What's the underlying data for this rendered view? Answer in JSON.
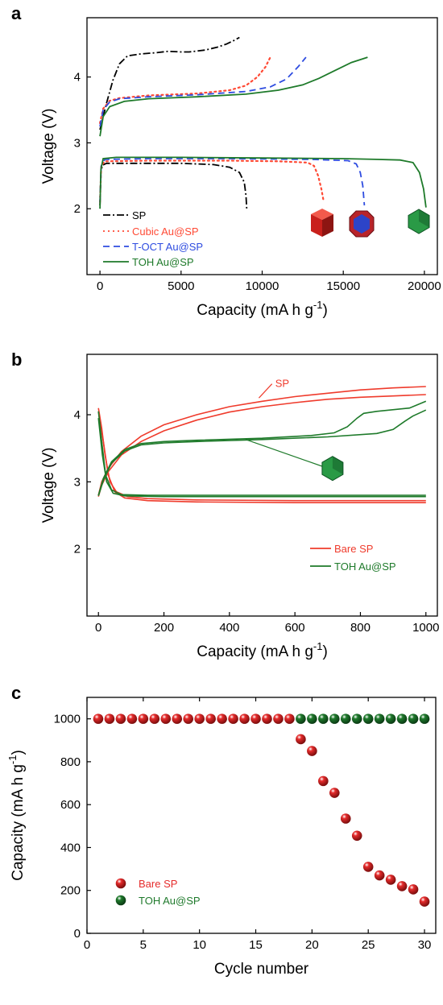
{
  "chart_data": [
    {
      "id": "a",
      "type": "line",
      "panel_label": "a",
      "xlabel": "Capacity (mA h g",
      "xlabel_sup": "-1",
      "xlabel_end": ")",
      "ylabel": "Voltage (V)",
      "xlim": [
        -800,
        20800
      ],
      "ylim": [
        1.0,
        4.9
      ],
      "xticks": [
        0,
        5000,
        10000,
        15000,
        20000
      ],
      "xtick_labels": [
        "0",
        "5000",
        "10000",
        "15000",
        "20000"
      ],
      "yticks": [
        2,
        3,
        4
      ],
      "ytick_labels": [
        "2",
        "3",
        "4"
      ],
      "legend_position": "bottom-left",
      "series": [
        {
          "name": "SP",
          "color": "#000000",
          "style": "dashdot",
          "discharge": [
            [
              0,
              2.05
            ],
            [
              60,
              2.55
            ],
            [
              150,
              2.66
            ],
            [
              400,
              2.69
            ],
            [
              2000,
              2.69
            ],
            [
              5000,
              2.69
            ],
            [
              7000,
              2.67
            ],
            [
              8000,
              2.63
            ],
            [
              8600,
              2.55
            ],
            [
              8900,
              2.4
            ],
            [
              9000,
              2.2
            ],
            [
              9050,
              1.98
            ]
          ],
          "charge": [
            [
              0,
              3.2
            ],
            [
              150,
              3.35
            ],
            [
              400,
              3.6
            ],
            [
              800,
              3.95
            ],
            [
              1200,
              4.2
            ],
            [
              1700,
              4.32
            ],
            [
              2500,
              4.35
            ],
            [
              3500,
              4.37
            ],
            [
              4200,
              4.39
            ],
            [
              5000,
              4.38
            ],
            [
              5500,
              4.38
            ],
            [
              6500,
              4.41
            ],
            [
              7200,
              4.45
            ],
            [
              7800,
              4.5
            ],
            [
              8300,
              4.56
            ],
            [
              8600,
              4.6
            ]
          ]
        },
        {
          "name": "Cubic Au@SP",
          "color": "#ff4a35",
          "style": "dotted",
          "discharge": [
            [
              0,
              2.1
            ],
            [
              80,
              2.65
            ],
            [
              300,
              2.72
            ],
            [
              3000,
              2.73
            ],
            [
              8000,
              2.73
            ],
            [
              11000,
              2.72
            ],
            [
              12800,
              2.7
            ],
            [
              13200,
              2.65
            ],
            [
              13450,
              2.5
            ],
            [
              13650,
              2.3
            ],
            [
              13800,
              2.1
            ]
          ],
          "charge": [
            [
              0,
              3.3
            ],
            [
              200,
              3.52
            ],
            [
              600,
              3.64
            ],
            [
              1200,
              3.68
            ],
            [
              3000,
              3.72
            ],
            [
              6000,
              3.75
            ],
            [
              8000,
              3.8
            ],
            [
              9000,
              3.87
            ],
            [
              9700,
              4.0
            ],
            [
              10200,
              4.15
            ],
            [
              10500,
              4.3
            ]
          ]
        },
        {
          "name": "T-OCT Au@SP",
          "color": "#2e4ce0",
          "style": "dashed",
          "discharge": [
            [
              0,
              2.1
            ],
            [
              80,
              2.65
            ],
            [
              300,
              2.75
            ],
            [
              3000,
              2.76
            ],
            [
              8000,
              2.76
            ],
            [
              13000,
              2.75
            ],
            [
              15300,
              2.73
            ],
            [
              15800,
              2.68
            ],
            [
              16050,
              2.55
            ],
            [
              16200,
              2.35
            ],
            [
              16300,
              2.05
            ]
          ],
          "charge": [
            [
              0,
              3.25
            ],
            [
              200,
              3.5
            ],
            [
              600,
              3.62
            ],
            [
              1200,
              3.67
            ],
            [
              3000,
              3.7
            ],
            [
              6000,
              3.73
            ],
            [
              9000,
              3.78
            ],
            [
              10500,
              3.85
            ],
            [
              11500,
              3.97
            ],
            [
              12200,
              4.15
            ],
            [
              12700,
              4.3
            ]
          ]
        },
        {
          "name": "TOH Au@SP",
          "color": "#1e7a2a",
          "style": "solid",
          "discharge": [
            [
              0,
              2.0
            ],
            [
              60,
              2.6
            ],
            [
              200,
              2.76
            ],
            [
              1000,
              2.78
            ],
            [
              5000,
              2.78
            ],
            [
              10000,
              2.77
            ],
            [
              15000,
              2.76
            ],
            [
              17000,
              2.75
            ],
            [
              18500,
              2.74
            ],
            [
              19300,
              2.7
            ],
            [
              19700,
              2.55
            ],
            [
              19950,
              2.3
            ],
            [
              20100,
              2.02
            ]
          ],
          "charge": [
            [
              0,
              3.1
            ],
            [
              200,
              3.4
            ],
            [
              600,
              3.55
            ],
            [
              1500,
              3.63
            ],
            [
              3000,
              3.67
            ],
            [
              6000,
              3.7
            ],
            [
              9000,
              3.74
            ],
            [
              11000,
              3.8
            ],
            [
              12500,
              3.88
            ],
            [
              13500,
              3.98
            ],
            [
              14500,
              4.1
            ],
            [
              15500,
              4.22
            ],
            [
              16500,
              4.3
            ]
          ]
        }
      ]
    },
    {
      "id": "b",
      "type": "line",
      "panel_label": "b",
      "xlabel": "Capacity (mA h g",
      "xlabel_sup": "-1",
      "xlabel_end": ")",
      "ylabel": "Voltage (V)",
      "xlim": [
        -35,
        1035
      ],
      "ylim": [
        1.0,
        4.9
      ],
      "xticks": [
        0,
        200,
        400,
        600,
        800,
        1000
      ],
      "xtick_labels": [
        "0",
        "200",
        "400",
        "600",
        "800",
        "1000"
      ],
      "yticks": [
        2,
        3,
        4
      ],
      "ytick_labels": [
        "2",
        "3",
        "4"
      ],
      "legend_position": "bottom-right",
      "annotation": "SP",
      "series": [
        {
          "name": "Bare SP",
          "color": "#ef3b2c",
          "curves": [
            [
              [
                0,
                4.1
              ],
              [
                10,
                3.8
              ],
              [
                20,
                3.4
              ],
              [
                35,
                3.0
              ],
              [
                55,
                2.85
              ],
              [
                90,
                2.78
              ],
              [
                150,
                2.75
              ],
              [
                300,
                2.73
              ],
              [
                600,
                2.72
              ],
              [
                1000,
                2.72
              ]
            ],
            [
              [
                0,
                4.05
              ],
              [
                15,
                3.6
              ],
              [
                30,
                3.1
              ],
              [
                50,
                2.85
              ],
              [
                80,
                2.76
              ],
              [
                150,
                2.72
              ],
              [
                300,
                2.7
              ],
              [
                600,
                2.69
              ],
              [
                1000,
                2.69
              ]
            ],
            [
              [
                0,
                2.8
              ],
              [
                10,
                3.0
              ],
              [
                30,
                3.2
              ],
              [
                70,
                3.45
              ],
              [
                130,
                3.68
              ],
              [
                200,
                3.85
              ],
              [
                300,
                4.0
              ],
              [
                400,
                4.12
              ],
              [
                500,
                4.2
              ],
              [
                600,
                4.27
              ],
              [
                700,
                4.32
              ],
              [
                800,
                4.37
              ],
              [
                900,
                4.4
              ],
              [
                1000,
                4.42
              ]
            ],
            [
              [
                0,
                2.78
              ],
              [
                10,
                2.95
              ],
              [
                30,
                3.15
              ],
              [
                70,
                3.4
              ],
              [
                130,
                3.6
              ],
              [
                200,
                3.76
              ],
              [
                300,
                3.92
              ],
              [
                400,
                4.04
              ],
              [
                500,
                4.12
              ],
              [
                600,
                4.18
              ],
              [
                700,
                4.23
              ],
              [
                800,
                4.26
              ],
              [
                900,
                4.28
              ],
              [
                1000,
                4.3
              ]
            ]
          ]
        },
        {
          "name": "TOH Au@SP",
          "color": "#1e7a2a",
          "curves": [
            [
              [
                0,
                4.05
              ],
              [
                10,
                3.6
              ],
              [
                22,
                3.1
              ],
              [
                40,
                2.88
              ],
              [
                70,
                2.81
              ],
              [
                150,
                2.8
              ],
              [
                400,
                2.8
              ],
              [
                700,
                2.8
              ],
              [
                1000,
                2.8
              ]
            ],
            [
              [
                0,
                3.95
              ],
              [
                12,
                3.4
              ],
              [
                25,
                3.0
              ],
              [
                45,
                2.83
              ],
              [
                80,
                2.79
              ],
              [
                200,
                2.78
              ],
              [
                500,
                2.78
              ],
              [
                1000,
                2.78
              ]
            ],
            [
              [
                0,
                2.8
              ],
              [
                15,
                3.05
              ],
              [
                40,
                3.3
              ],
              [
                80,
                3.48
              ],
              [
                130,
                3.57
              ],
              [
                200,
                3.6
              ],
              [
                300,
                3.62
              ],
              [
                500,
                3.65
              ],
              [
                650,
                3.69
              ],
              [
                720,
                3.73
              ],
              [
                760,
                3.82
              ],
              [
                790,
                3.95
              ],
              [
                810,
                4.02
              ],
              [
                850,
                4.05
              ],
              [
                950,
                4.1
              ],
              [
                1000,
                4.2
              ]
            ],
            [
              [
                0,
                2.79
              ],
              [
                15,
                3.02
              ],
              [
                40,
                3.28
              ],
              [
                80,
                3.46
              ],
              [
                130,
                3.55
              ],
              [
                200,
                3.58
              ],
              [
                300,
                3.6
              ],
              [
                500,
                3.63
              ],
              [
                700,
                3.67
              ],
              [
                850,
                3.72
              ],
              [
                900,
                3.78
              ],
              [
                935,
                3.9
              ],
              [
                960,
                3.98
              ],
              [
                1000,
                4.07
              ]
            ]
          ]
        }
      ]
    },
    {
      "id": "c",
      "type": "scatter",
      "panel_label": "c",
      "xlabel": "Cycle number",
      "ylabel": "Capacity (mA h g",
      "ylabel_sup": "-1",
      "ylabel_end": ")",
      "xlim": [
        0,
        31
      ],
      "ylim": [
        0,
        1100
      ],
      "xticks": [
        0,
        5,
        10,
        15,
        20,
        25,
        30
      ],
      "xtick_labels": [
        "0",
        "5",
        "10",
        "15",
        "20",
        "25",
        "30"
      ],
      "yticks": [
        0,
        200,
        400,
        600,
        800,
        1000
      ],
      "ytick_labels": [
        "0",
        "200",
        "400",
        "600",
        "800",
        "1000"
      ],
      "legend_position": "bottom-left",
      "series": [
        {
          "name": "Bare SP",
          "color": "#e52b2b",
          "x": [
            1,
            2,
            3,
            4,
            5,
            6,
            7,
            8,
            9,
            10,
            11,
            12,
            13,
            14,
            15,
            16,
            17,
            18,
            19,
            20,
            21,
            22,
            23,
            24,
            25,
            26,
            27,
            28,
            29,
            30
          ],
          "values": [
            1000,
            1000,
            1000,
            1000,
            1000,
            1000,
            1000,
            1000,
            1000,
            1000,
            1000,
            1000,
            1000,
            1000,
            1000,
            1000,
            1000,
            1000,
            905,
            850,
            710,
            655,
            535,
            455,
            310,
            270,
            250,
            220,
            205,
            148
          ]
        },
        {
          "name": "TOH Au@SP",
          "color": "#1f7a2c",
          "x": [
            19,
            20,
            21,
            22,
            23,
            24,
            25,
            26,
            27,
            28,
            29,
            30
          ],
          "values": [
            1000,
            1000,
            1000,
            1000,
            1000,
            1000,
            1000,
            1000,
            1000,
            1000,
            1000,
            1000
          ]
        }
      ]
    }
  ]
}
